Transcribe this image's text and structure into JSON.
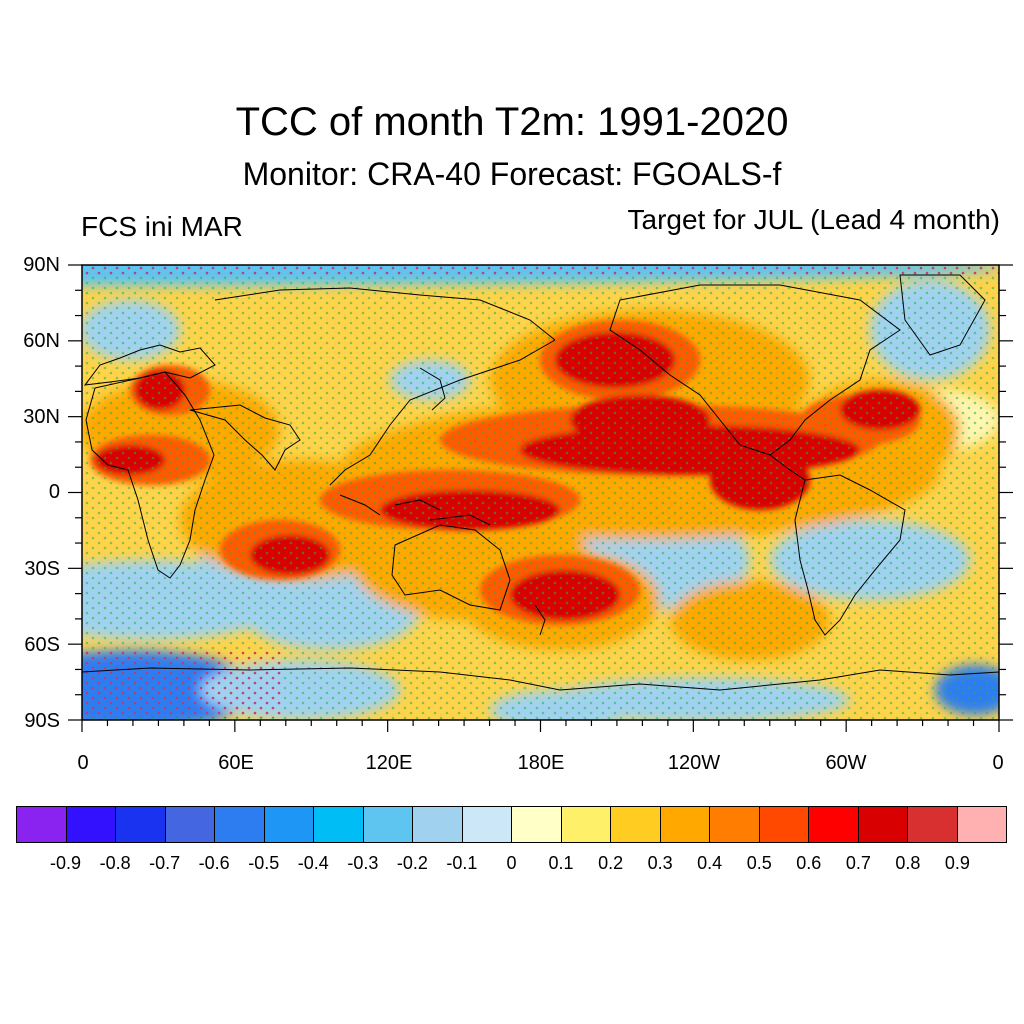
{
  "title": "TCC of month T2m: 1991-2020",
  "subtitle": "Monitor: CRA-40   Forecast: FGOALS-f",
  "left_label": "FCS ini MAR",
  "right_label": "Target for JUL (Lead 4 month)",
  "lat_labels": [
    "90N",
    "60N",
    "30N",
    "0",
    "30S",
    "60S",
    "90S"
  ],
  "lon_labels": [
    "0",
    "60E",
    "120E",
    "180E",
    "120W",
    "60W",
    "0"
  ],
  "colorbar": {
    "colors": [
      "#8a22f0",
      "#3311ff",
      "#1a33f0",
      "#4466e0",
      "#2d7df0",
      "#1e96f5",
      "#00bef5",
      "#5ec4f0",
      "#a0d2f0",
      "#cce8f8",
      "#ffffc8",
      "#fff06a",
      "#ffcc22",
      "#ffa800",
      "#ff7d00",
      "#ff4800",
      "#ff0000",
      "#d80000",
      "#d83030",
      "#ffb0b0"
    ],
    "labels": [
      "-0.9",
      "-0.8",
      "-0.7",
      "-0.6",
      "-0.5",
      "-0.4",
      "-0.3",
      "-0.2",
      "-0.1",
      "0",
      "0.1",
      "0.2",
      "0.3",
      "0.4",
      "0.5",
      "0.6",
      "0.7",
      "0.8",
      "0.9"
    ]
  },
  "field_colors": {
    "background": "#ffd34a",
    "warm_core": "#d80000",
    "warm_mid": "#ff5a00",
    "warm_edge": "#ffa800",
    "cool_light": "#a0d2f0",
    "cool_mid": "#5ec4f0",
    "cool_deep": "#2d7df0",
    "pale": "#fff6b0",
    "stipple": "#22b14c",
    "coast": "#000000"
  }
}
